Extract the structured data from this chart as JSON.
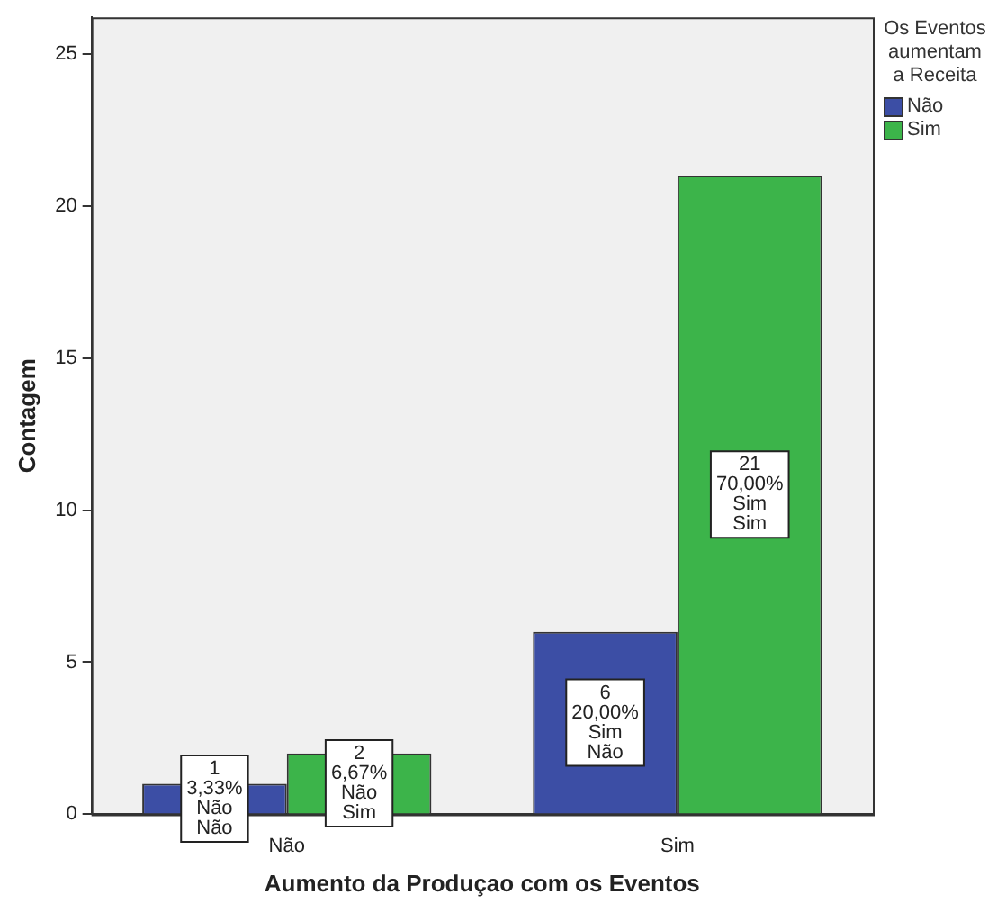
{
  "chart_data": {
    "type": "bar",
    "xlabel": "Aumento da Produçao com os Eventos",
    "ylabel": "Contagem",
    "legend_title": "Os Eventos aumentam a Receita",
    "legend": "top right",
    "grid": false,
    "categories": [
      "Não",
      "Sim"
    ],
    "series": [
      {
        "name": "Não",
        "color": "#3c4ea5",
        "values": [
          1,
          6
        ],
        "value_labels": [
          "1\n3,33%\nNão\nNão",
          "6\n20,00%\nSim\nNão"
        ]
      },
      {
        "name": "Sim",
        "color": "#3cb44a",
        "values": [
          2,
          21
        ],
        "value_labels": [
          "2\n6,67%\nNão\nSim",
          "21\n70,00%\nSim\nSim"
        ]
      }
    ],
    "ylim": [
      0,
      26.2
    ],
    "yticks": [
      0,
      5,
      10,
      15,
      20,
      25
    ]
  }
}
